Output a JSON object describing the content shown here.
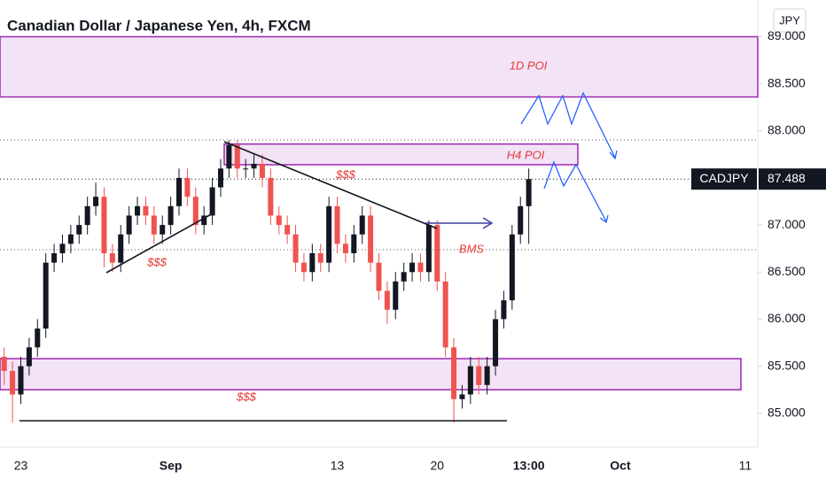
{
  "chart_data": {
    "type": "candlestick",
    "title": "Canadian Dollar / Japanese Yen, 4h, FXCM",
    "currency": "JPY",
    "symbol": "CADJPY",
    "last_price": 87.488,
    "categories": [
      null,
      null,
      "23",
      null,
      null,
      null,
      null,
      null,
      null,
      null,
      null,
      null,
      null,
      null,
      null,
      null,
      null,
      null,
      null,
      null,
      "Sep",
      null,
      null,
      null,
      null,
      null,
      null,
      null,
      null,
      null,
      null,
      null,
      null,
      null,
      null,
      null,
      null,
      null,
      null,
      null,
      "13",
      null,
      null,
      null,
      null,
      null,
      null,
      null,
      null,
      null,
      null,
      null,
      "20",
      null,
      null,
      null,
      null,
      null,
      null,
      null,
      null,
      null,
      null,
      "13:00",
      null,
      null,
      null,
      null,
      null,
      null,
      null,
      null,
      null,
      null,
      "Oct",
      null,
      null,
      null,
      null,
      null,
      null,
      null,
      null,
      null,
      null,
      null,
      null,
      null,
      null,
      "11",
      null
    ],
    "open": [
      85.6,
      85.45,
      85.2,
      85.5,
      85.7,
      85.9,
      86.6,
      86.7,
      86.8,
      86.9,
      87.0,
      87.2,
      87.3,
      86.7,
      86.6,
      86.9,
      87.1,
      87.2,
      87.1,
      86.9,
      87.0,
      87.2,
      87.5,
      87.3,
      87.0,
      87.1,
      87.4,
      87.6,
      87.85,
      87.6,
      87.6,
      87.65,
      87.5,
      87.1,
      87.0,
      86.9,
      86.6,
      86.5,
      86.7,
      86.6,
      87.2,
      86.8,
      86.7,
      86.9,
      87.1,
      86.6,
      86.3,
      86.1,
      86.4,
      86.5,
      86.6,
      86.5,
      87.0,
      86.4,
      85.7,
      85.15,
      85.2,
      85.5,
      85.3,
      85.5,
      86.0,
      86.2,
      86.9,
      87.2,
      null,
      null,
      null,
      null,
      null,
      null,
      null,
      null,
      null,
      null,
      null,
      null,
      null,
      null,
      null,
      null,
      null,
      null,
      null,
      null,
      null,
      null,
      null,
      null,
      null,
      null,
      null
    ],
    "high": [
      85.7,
      85.55,
      85.6,
      85.8,
      86.0,
      86.7,
      86.8,
      86.9,
      87.0,
      87.1,
      87.3,
      87.45,
      87.4,
      86.8,
      87.0,
      87.2,
      87.3,
      87.3,
      87.2,
      87.1,
      87.3,
      87.6,
      87.6,
      87.4,
      87.2,
      87.5,
      87.7,
      87.9,
      87.9,
      87.7,
      87.75,
      87.75,
      87.6,
      87.2,
      87.1,
      87.0,
      86.7,
      86.8,
      86.8,
      87.3,
      87.3,
      86.9,
      87.0,
      87.2,
      87.2,
      86.7,
      86.4,
      86.5,
      86.6,
      86.7,
      86.7,
      87.05,
      87.05,
      86.5,
      85.8,
      85.3,
      85.6,
      85.6,
      85.6,
      86.1,
      86.3,
      87.0,
      87.3,
      87.6,
      null,
      null,
      null,
      null,
      null,
      null,
      null,
      null,
      null,
      null,
      null,
      null,
      null,
      null,
      null,
      null,
      null,
      null,
      null,
      null,
      null,
      null,
      null,
      null,
      null,
      null,
      null
    ],
    "low": [
      85.3,
      84.9,
      85.1,
      85.4,
      85.6,
      85.8,
      86.5,
      86.6,
      86.7,
      86.8,
      86.9,
      87.1,
      86.55,
      86.5,
      86.5,
      86.8,
      87.0,
      87.0,
      86.8,
      86.8,
      86.9,
      87.1,
      87.2,
      86.9,
      86.9,
      87.0,
      87.3,
      87.5,
      87.5,
      87.5,
      87.5,
      87.4,
      87.0,
      86.9,
      86.8,
      86.5,
      86.4,
      86.4,
      86.5,
      86.5,
      86.7,
      86.6,
      86.6,
      86.8,
      86.5,
      86.2,
      85.95,
      86.0,
      86.3,
      86.4,
      86.4,
      86.4,
      86.3,
      85.6,
      84.9,
      85.05,
      85.1,
      85.2,
      85.2,
      85.4,
      85.9,
      86.1,
      86.8,
      86.8,
      null,
      null,
      null,
      null,
      null,
      null,
      null,
      null,
      null,
      null,
      null,
      null,
      null,
      null,
      null,
      null,
      null,
      null,
      null,
      null,
      null,
      null,
      null,
      null,
      null,
      null,
      null
    ],
    "close": [
      85.45,
      85.2,
      85.5,
      85.7,
      85.9,
      86.6,
      86.7,
      86.8,
      86.9,
      87.0,
      87.2,
      87.3,
      86.7,
      86.6,
      86.9,
      87.1,
      87.2,
      87.1,
      86.9,
      87.0,
      87.2,
      87.5,
      87.3,
      87.0,
      87.1,
      87.4,
      87.6,
      87.85,
      87.6,
      87.6,
      87.65,
      87.5,
      87.1,
      87.0,
      86.9,
      86.6,
      86.5,
      86.7,
      86.6,
      87.2,
      86.8,
      86.7,
      86.9,
      87.1,
      86.6,
      86.3,
      86.1,
      86.4,
      86.5,
      86.6,
      86.5,
      87.0,
      86.4,
      85.7,
      85.15,
      85.2,
      85.5,
      85.3,
      85.5,
      86.0,
      86.2,
      86.9,
      87.2,
      87.488,
      null,
      null,
      null,
      null,
      null,
      null,
      null,
      null,
      null,
      null,
      null,
      null,
      null,
      null,
      null,
      null,
      null,
      null,
      null,
      null,
      null,
      null,
      null,
      null,
      null,
      null,
      null
    ],
    "up_color": "#131722",
    "down_color": "#ef5350",
    "ylim": [
      84.64,
      89.39
    ],
    "yticks": [
      {
        "value": 85,
        "label": "85.000"
      },
      {
        "value": 85.5,
        "label": "85.500"
      },
      {
        "value": 86,
        "label": "86.000"
      },
      {
        "value": 86.5,
        "label": "86.500"
      },
      {
        "value": 87,
        "label": "87.000"
      },
      {
        "value": 87.5,
        "label": "87.500"
      },
      {
        "value": 88,
        "label": "88.000"
      },
      {
        "value": 88.5,
        "label": "88.500"
      },
      {
        "value": 89,
        "label": "89.000"
      }
    ],
    "zones": [
      {
        "label": "1D POI",
        "range": [
          88.36,
          89.0
        ]
      },
      {
        "label": "H4 POI",
        "range": [
          87.64,
          87.86
        ]
      },
      {
        "range": [
          85.25,
          85.58
        ]
      }
    ],
    "support_level": 84.92,
    "annotations": [
      "$$$",
      "$$$",
      "$$$",
      "BMS"
    ]
  }
}
